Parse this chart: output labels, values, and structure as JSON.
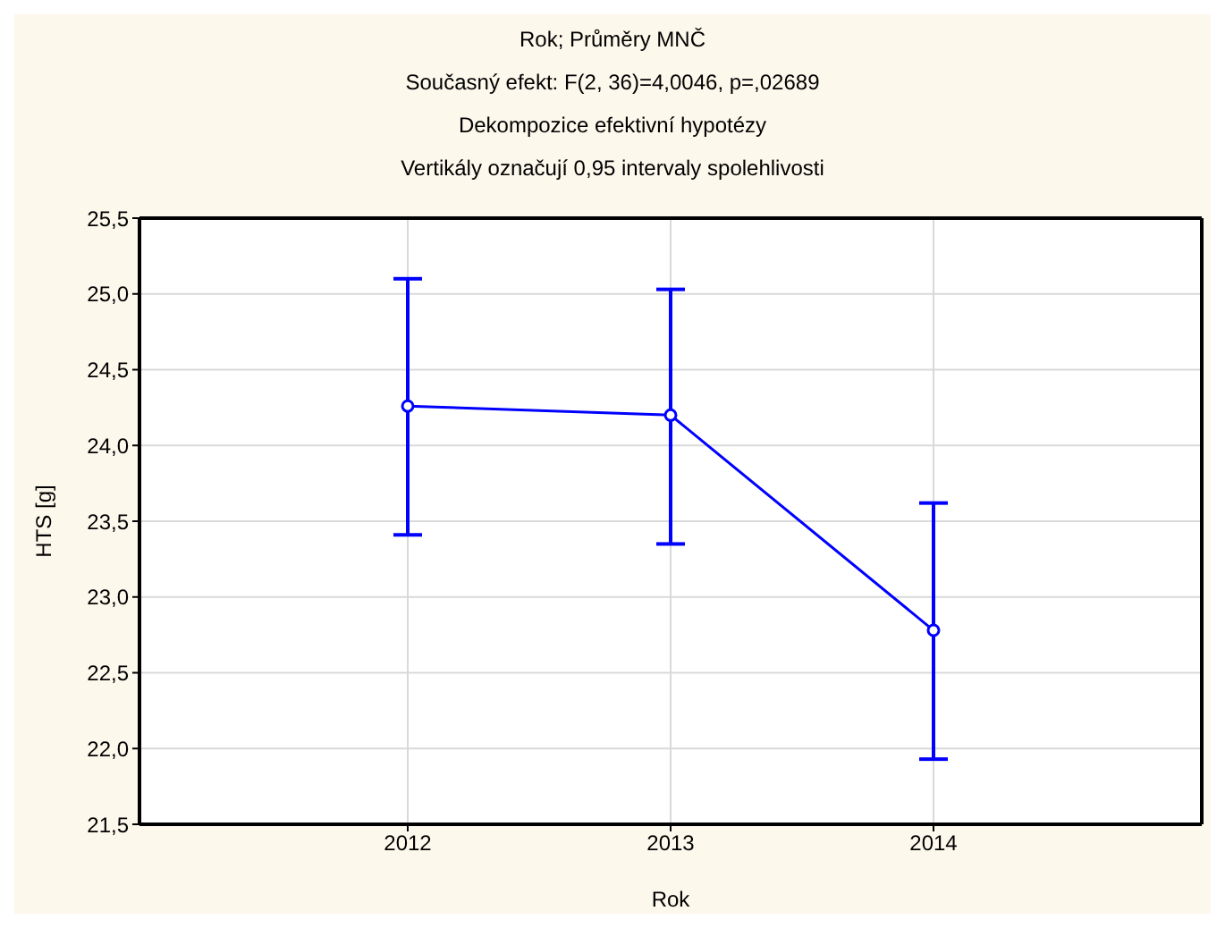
{
  "chart_data": {
    "type": "line",
    "title": "Rok; Průměry MNČ",
    "subtitle": "Současný efekt: F(2, 36)=4,0046, p=,02689\nDekompozice efektivní hypotézy\nVertikály označují 0,95 intervaly spolehlivosti",
    "xlabel": "Rok",
    "ylabel": "HTS [g]",
    "categories": [
      "2012",
      "2013",
      "2014"
    ],
    "series": [
      {
        "color": "#0000ff",
        "values": [
          24.26,
          24.2,
          22.78
        ],
        "errors": [
          [
            23.41,
            25.1
          ],
          [
            23.35,
            25.03
          ],
          [
            21.93,
            23.62
          ]
        ]
      }
    ],
    "ylim": [
      21.5,
      25.5
    ],
    "yticks": [
      {
        "value": 21.5,
        "label": "21,5"
      },
      {
        "value": 22,
        "label": "22,0"
      },
      {
        "value": 22.5,
        "label": "22,5"
      },
      {
        "value": 23,
        "label": "23,0"
      },
      {
        "value": 23.5,
        "label": "23,5"
      },
      {
        "value": 24,
        "label": "24,0"
      },
      {
        "value": 24.5,
        "label": "24,5"
      },
      {
        "value": 25,
        "label": "25,0"
      },
      {
        "value": 25.5,
        "label": "25,5"
      }
    ],
    "grid": true,
    "legend": false,
    "marker": "circle",
    "line_style": "solid"
  }
}
